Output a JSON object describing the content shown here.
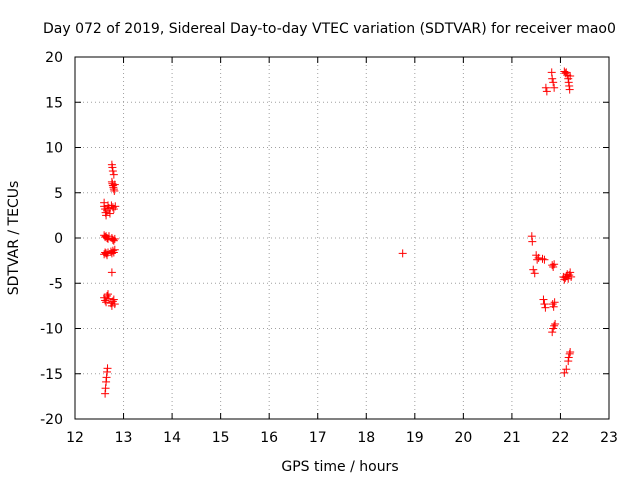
{
  "chart_data": {
    "type": "scatter",
    "title": "Day 072 of 2019, Sidereal Day-to-day VTEC variation (SDTVAR) for receiver mao0",
    "xlabel": "GPS time / hours",
    "ylabel": "SDTVAR / TECUs",
    "xlim": [
      12,
      23
    ],
    "ylim": [
      -20,
      20
    ],
    "xticks": [
      12,
      13,
      14,
      15,
      16,
      17,
      18,
      19,
      20,
      21,
      22,
      23
    ],
    "yticks": [
      -20,
      -15,
      -10,
      -5,
      0,
      5,
      10,
      15,
      20
    ],
    "grid": true,
    "marker": "+",
    "color": "#ff0000",
    "series": [
      {
        "name": "SDTVAR",
        "points": [
          [
            12.6,
            3.9
          ],
          [
            12.6,
            3.5
          ],
          [
            12.62,
            3.2
          ],
          [
            12.63,
            2.8
          ],
          [
            12.64,
            2.5
          ],
          [
            12.66,
            3.0
          ],
          [
            12.68,
            3.6
          ],
          [
            12.7,
            3.3
          ],
          [
            12.72,
            2.7
          ],
          [
            12.6,
            0.3
          ],
          [
            12.62,
            0.1
          ],
          [
            12.64,
            0.2
          ],
          [
            12.66,
            0.0
          ],
          [
            12.68,
            -0.1
          ],
          [
            12.7,
            0.2
          ],
          [
            12.6,
            -1.8
          ],
          [
            12.62,
            -1.6
          ],
          [
            12.64,
            -1.7
          ],
          [
            12.66,
            -1.9
          ],
          [
            12.68,
            -1.6
          ],
          [
            12.6,
            -6.6
          ],
          [
            12.62,
            -6.9
          ],
          [
            12.64,
            -7.1
          ],
          [
            12.66,
            -6.4
          ],
          [
            12.68,
            -6.2
          ],
          [
            12.7,
            -6.7
          ],
          [
            12.62,
            -17.2
          ],
          [
            12.63,
            -16.6
          ],
          [
            12.64,
            -15.9
          ],
          [
            12.65,
            -15.4
          ],
          [
            12.66,
            -14.8
          ],
          [
            12.67,
            -14.4
          ],
          [
            12.76,
            8.1
          ],
          [
            12.77,
            7.8
          ],
          [
            12.78,
            7.4
          ],
          [
            12.8,
            7.0
          ],
          [
            12.76,
            6.2
          ],
          [
            12.77,
            6.0
          ],
          [
            12.78,
            5.8
          ],
          [
            12.79,
            5.6
          ],
          [
            12.8,
            5.4
          ],
          [
            12.81,
            5.2
          ],
          [
            12.82,
            5.9
          ],
          [
            12.75,
            3.6
          ],
          [
            12.78,
            3.4
          ],
          [
            12.8,
            3.2
          ],
          [
            12.83,
            3.5
          ],
          [
            12.76,
            0.0
          ],
          [
            12.78,
            -0.2
          ],
          [
            12.8,
            -0.3
          ],
          [
            12.82,
            -0.1
          ],
          [
            12.74,
            -1.5
          ],
          [
            12.76,
            -1.7
          ],
          [
            12.78,
            -1.4
          ],
          [
            12.8,
            -1.6
          ],
          [
            12.82,
            -1.3
          ],
          [
            12.76,
            -3.8
          ],
          [
            12.74,
            -7.2
          ],
          [
            12.76,
            -7.5
          ],
          [
            12.78,
            -7.0
          ],
          [
            12.8,
            -6.8
          ],
          [
            12.82,
            -7.3
          ],
          [
            18.75,
            -1.7
          ],
          [
            21.41,
            0.2
          ],
          [
            21.42,
            -0.4
          ],
          [
            21.44,
            -3.5
          ],
          [
            21.47,
            -3.9
          ],
          [
            21.5,
            -1.9
          ],
          [
            21.52,
            -2.4
          ],
          [
            21.55,
            -2.2
          ],
          [
            21.63,
            -2.3
          ],
          [
            21.67,
            -2.4
          ],
          [
            21.65,
            -6.8
          ],
          [
            21.67,
            -7.3
          ],
          [
            21.69,
            -7.7
          ],
          [
            21.7,
            16.6
          ],
          [
            21.72,
            16.2
          ],
          [
            21.82,
            18.3
          ],
          [
            21.83,
            17.6
          ],
          [
            21.85,
            17.2
          ],
          [
            21.87,
            16.6
          ],
          [
            21.83,
            -3.0
          ],
          [
            21.85,
            -3.2
          ],
          [
            21.87,
            -2.9
          ],
          [
            21.84,
            -7.3
          ],
          [
            21.86,
            -7.6
          ],
          [
            21.88,
            -7.1
          ],
          [
            21.83,
            -10.4
          ],
          [
            21.85,
            -10.0
          ],
          [
            21.87,
            -9.7
          ],
          [
            21.89,
            -9.5
          ],
          [
            22.08,
            18.4
          ],
          [
            22.1,
            18.2
          ],
          [
            22.12,
            18.3
          ],
          [
            22.14,
            18.0
          ],
          [
            22.16,
            17.6
          ],
          [
            22.17,
            17.2
          ],
          [
            22.18,
            16.8
          ],
          [
            22.19,
            16.4
          ],
          [
            22.2,
            17.9
          ],
          [
            22.06,
            -4.3
          ],
          [
            22.08,
            -4.6
          ],
          [
            22.1,
            -4.4
          ],
          [
            22.12,
            -4.2
          ],
          [
            22.14,
            -4.0
          ],
          [
            22.16,
            -4.5
          ],
          [
            22.18,
            -4.1
          ],
          [
            22.2,
            -3.8
          ],
          [
            22.22,
            -4.3
          ],
          [
            22.08,
            -14.9
          ],
          [
            22.12,
            -14.5
          ],
          [
            22.16,
            -13.6
          ],
          [
            22.17,
            -13.2
          ],
          [
            22.19,
            -12.8
          ],
          [
            22.2,
            -12.6
          ]
        ]
      }
    ]
  }
}
